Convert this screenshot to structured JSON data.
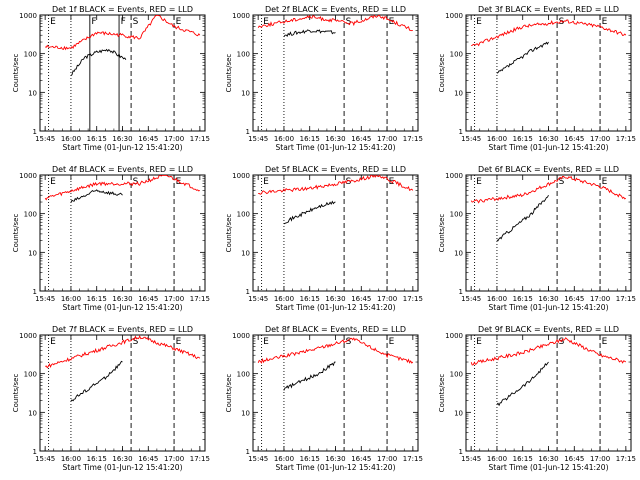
{
  "chart_data": [
    {
      "type": "line",
      "title": "Det 1f BLACK = Events, RED = LLD",
      "xlabel": "Start Time (01-Jun-12 15:41:20)",
      "ylabel": "Counts/sec",
      "xticks": [
        "15:45",
        "16:00",
        "16:15",
        "16:30",
        "16:45",
        "17:00",
        "17:15"
      ],
      "yticks": [
        "1",
        "10",
        "100",
        "1000"
      ],
      "yscale": "log",
      "ylim": [
        1,
        1000
      ],
      "vertical_markers": [
        {
          "time": "15:47",
          "label": "E",
          "style": "dotted"
        },
        {
          "time": "16:00",
          "label": "",
          "style": "dotted"
        },
        {
          "time": "16:11",
          "label": "F",
          "style": "solid"
        },
        {
          "time": "16:28",
          "label": "F",
          "style": "solid"
        },
        {
          "time": "16:35",
          "label": "S",
          "style": "dashed"
        },
        {
          "time": "17:00",
          "label": "E",
          "style": "dashed"
        }
      ],
      "series": [
        {
          "name": "Events",
          "color": "#000000",
          "x": [
            "16:00",
            "16:08",
            "16:15",
            "16:22",
            "16:28",
            "16:32"
          ],
          "y": [
            28,
            80,
            110,
            130,
            90,
            70
          ]
        },
        {
          "name": "LLD",
          "color": "#ff0000",
          "x": [
            "15:45",
            "16:00",
            "16:15",
            "16:30",
            "16:40",
            "16:50",
            "17:00",
            "17:15"
          ],
          "y": [
            150,
            140,
            350,
            300,
            250,
            1000,
            500,
            300
          ]
        }
      ]
    },
    {
      "type": "line",
      "title": "Det 2f BLACK = Events, RED = LLD",
      "xlabel": "Start Time (01-Jun-12 15:41:20)",
      "ylabel": "Counts/sec",
      "xticks": [
        "15:45",
        "16:00",
        "16:15",
        "16:30",
        "16:45",
        "17:00",
        "17:15"
      ],
      "yticks": [
        "1",
        "10",
        "100",
        "1000"
      ],
      "yscale": "log",
      "ylim": [
        1,
        1000
      ],
      "vertical_markers": [
        {
          "time": "15:47",
          "label": "E",
          "style": "dotted"
        },
        {
          "time": "16:00",
          "label": "",
          "style": "dotted"
        },
        {
          "time": "16:35",
          "label": "S",
          "style": "dashed"
        },
        {
          "time": "17:00",
          "label": "E",
          "style": "dashed"
        }
      ],
      "series": [
        {
          "name": "Events",
          "color": "#000000",
          "x": [
            "16:00",
            "16:15",
            "16:30"
          ],
          "y": [
            300,
            400,
            350
          ]
        },
        {
          "name": "LLD",
          "color": "#ff0000",
          "x": [
            "15:45",
            "16:15",
            "16:40",
            "16:55",
            "17:15"
          ],
          "y": [
            500,
            900,
            600,
            1000,
            400
          ]
        }
      ]
    },
    {
      "type": "line",
      "title": "Det 3f BLACK = Events, RED = LLD",
      "xlabel": "Start Time (01-Jun-12 15:41:20)",
      "ylabel": "Counts/sec",
      "xticks": [
        "15:45",
        "16:00",
        "16:15",
        "16:30",
        "16:45",
        "17:00",
        "17:15"
      ],
      "yticks": [
        "1",
        "10",
        "100",
        "1000"
      ],
      "yscale": "log",
      "ylim": [
        1,
        1000
      ],
      "vertical_markers": [
        {
          "time": "15:47",
          "label": "E",
          "style": "dotted"
        },
        {
          "time": "16:00",
          "label": "",
          "style": "dotted"
        },
        {
          "time": "16:35",
          "label": "S",
          "style": "dashed"
        },
        {
          "time": "17:00",
          "label": "E",
          "style": "dashed"
        }
      ],
      "series": [
        {
          "name": "Events",
          "color": "#000000",
          "x": [
            "16:00",
            "16:20",
            "16:30"
          ],
          "y": [
            30,
            120,
            200
          ]
        },
        {
          "name": "LLD",
          "color": "#ff0000",
          "x": [
            "15:45",
            "16:15",
            "16:40",
            "17:00",
            "17:15"
          ],
          "y": [
            150,
            500,
            700,
            500,
            300
          ]
        }
      ]
    },
    {
      "type": "line",
      "title": "Det 4f BLACK = Events, RED = LLD",
      "xlabel": "Start Time (01-Jun-12 15:41:20)",
      "ylabel": "Counts/sec",
      "xticks": [
        "15:45",
        "16:00",
        "16:15",
        "16:30",
        "16:45",
        "17:00",
        "17:15"
      ],
      "yticks": [
        "1",
        "10",
        "100",
        "1000"
      ],
      "yscale": "log",
      "ylim": [
        1,
        1000
      ],
      "vertical_markers": [
        {
          "time": "15:47",
          "label": "E",
          "style": "dotted"
        },
        {
          "time": "16:00",
          "label": "",
          "style": "dotted"
        },
        {
          "time": "16:35",
          "label": "S",
          "style": "dashed"
        },
        {
          "time": "17:00",
          "label": "E",
          "style": "dashed"
        }
      ],
      "series": [
        {
          "name": "Events",
          "color": "#000000",
          "x": [
            "16:00",
            "16:15",
            "16:30"
          ],
          "y": [
            200,
            400,
            300
          ]
        },
        {
          "name": "LLD",
          "color": "#ff0000",
          "x": [
            "15:45",
            "16:15",
            "16:40",
            "16:55",
            "17:15"
          ],
          "y": [
            250,
            600,
            600,
            1000,
            400
          ]
        }
      ]
    },
    {
      "type": "line",
      "title": "Det 5f BLACK = Events, RED = LLD",
      "xlabel": "Start Time (01-Jun-12 15:41:20)",
      "ylabel": "Counts/sec",
      "xticks": [
        "15:45",
        "16:00",
        "16:15",
        "16:30",
        "16:45",
        "17:00",
        "17:15"
      ],
      "yticks": [
        "1",
        "10",
        "100",
        "1000"
      ],
      "yscale": "log",
      "ylim": [
        1,
        1000
      ],
      "vertical_markers": [
        {
          "time": "15:47",
          "label": "E",
          "style": "dotted"
        },
        {
          "time": "16:00",
          "label": "",
          "style": "dotted"
        },
        {
          "time": "16:35",
          "label": "S",
          "style": "dashed"
        },
        {
          "time": "17:00",
          "label": "E",
          "style": "dashed"
        }
      ],
      "series": [
        {
          "name": "Events",
          "color": "#000000",
          "x": [
            "16:00",
            "16:20",
            "16:30"
          ],
          "y": [
            60,
            150,
            200
          ]
        },
        {
          "name": "LLD",
          "color": "#ff0000",
          "x": [
            "15:45",
            "16:15",
            "16:40",
            "16:55",
            "17:15"
          ],
          "y": [
            350,
            450,
            700,
            1000,
            400
          ]
        }
      ]
    },
    {
      "type": "line",
      "title": "Det 6f BLACK = Events, RED = LLD",
      "xlabel": "Start Time (01-Jun-12 15:41:20)",
      "ylabel": "Counts/sec",
      "xticks": [
        "15:45",
        "16:00",
        "16:15",
        "16:30",
        "16:45",
        "17:00",
        "17:15"
      ],
      "yticks": [
        "1",
        "10",
        "100",
        "1000"
      ],
      "yscale": "log",
      "ylim": [
        1,
        1000
      ],
      "vertical_markers": [
        {
          "time": "15:47",
          "label": "E",
          "style": "dotted"
        },
        {
          "time": "16:00",
          "label": "",
          "style": "dotted"
        },
        {
          "time": "16:35",
          "label": "S",
          "style": "dashed"
        },
        {
          "time": "17:00",
          "label": "E",
          "style": "dashed"
        }
      ],
      "series": [
        {
          "name": "Events",
          "color": "#000000",
          "x": [
            "16:00",
            "16:20",
            "16:30"
          ],
          "y": [
            20,
            100,
            300
          ]
        },
        {
          "name": "LLD",
          "color": "#ff0000",
          "x": [
            "15:45",
            "16:15",
            "16:40",
            "17:00",
            "17:15"
          ],
          "y": [
            200,
            300,
            900,
            500,
            250
          ]
        }
      ]
    },
    {
      "type": "line",
      "title": "Det 7f BLACK = Events, RED = LLD",
      "xlabel": "Start Time (01-Jun-12 15:41:20)",
      "ylabel": "Counts/sec",
      "xticks": [
        "15:45",
        "16:00",
        "16:15",
        "16:30",
        "16:45",
        "17:00",
        "17:15"
      ],
      "yticks": [
        "1",
        "10",
        "100",
        "1000"
      ],
      "yscale": "log",
      "ylim": [
        1,
        1000
      ],
      "vertical_markers": [
        {
          "time": "15:47",
          "label": "E",
          "style": "dotted"
        },
        {
          "time": "16:00",
          "label": "",
          "style": "dotted"
        },
        {
          "time": "16:35",
          "label": "S",
          "style": "dashed"
        },
        {
          "time": "17:00",
          "label": "E",
          "style": "dashed"
        }
      ],
      "series": [
        {
          "name": "Events",
          "color": "#000000",
          "x": [
            "16:00",
            "16:20",
            "16:30"
          ],
          "y": [
            20,
            80,
            200
          ]
        },
        {
          "name": "LLD",
          "color": "#ff0000",
          "x": [
            "15:45",
            "16:15",
            "16:40",
            "17:00",
            "17:15"
          ],
          "y": [
            150,
            400,
            900,
            450,
            250
          ]
        }
      ]
    },
    {
      "type": "line",
      "title": "Det 8f BLACK = Events, RED = LLD",
      "xlabel": "Start Time (01-Jun-12 15:41:20)",
      "ylabel": "Counts/sec",
      "xticks": [
        "15:45",
        "16:00",
        "16:15",
        "16:30",
        "16:45",
        "17:00",
        "17:15"
      ],
      "yticks": [
        "1",
        "10",
        "100",
        "1000"
      ],
      "yscale": "log",
      "ylim": [
        1,
        1000
      ],
      "vertical_markers": [
        {
          "time": "15:47",
          "label": "E",
          "style": "dotted"
        },
        {
          "time": "16:00",
          "label": "",
          "style": "dotted"
        },
        {
          "time": "16:35",
          "label": "S",
          "style": "dashed"
        },
        {
          "time": "17:00",
          "label": "E",
          "style": "dashed"
        }
      ],
      "series": [
        {
          "name": "Events",
          "color": "#000000",
          "x": [
            "16:00",
            "16:20",
            "16:30"
          ],
          "y": [
            40,
            100,
            200
          ]
        },
        {
          "name": "LLD",
          "color": "#ff0000",
          "x": [
            "15:45",
            "16:15",
            "16:40",
            "17:00",
            "17:15"
          ],
          "y": [
            200,
            400,
            800,
            300,
            200
          ]
        }
      ]
    },
    {
      "type": "line",
      "title": "Det 9f BLACK = Events, RED = LLD",
      "xlabel": "Start Time (01-Jun-12 15:41:20)",
      "ylabel": "Counts/sec",
      "xticks": [
        "15:45",
        "16:00",
        "16:15",
        "16:30",
        "16:45",
        "17:00",
        "17:15"
      ],
      "yticks": [
        "1",
        "10",
        "100",
        "1000"
      ],
      "yscale": "log",
      "ylim": [
        1,
        1000
      ],
      "vertical_markers": [
        {
          "time": "15:47",
          "label": "E",
          "style": "dotted"
        },
        {
          "time": "16:00",
          "label": "",
          "style": "dotted"
        },
        {
          "time": "16:35",
          "label": "S",
          "style": "dashed"
        },
        {
          "time": "17:00",
          "label": "E",
          "style": "dashed"
        }
      ],
      "series": [
        {
          "name": "Events",
          "color": "#000000",
          "x": [
            "16:00",
            "16:20",
            "16:30"
          ],
          "y": [
            15,
            70,
            200
          ]
        },
        {
          "name": "LLD",
          "color": "#ff0000",
          "x": [
            "15:45",
            "16:15",
            "16:40",
            "17:00",
            "17:15"
          ],
          "y": [
            180,
            350,
            800,
            300,
            200
          ]
        }
      ]
    }
  ]
}
